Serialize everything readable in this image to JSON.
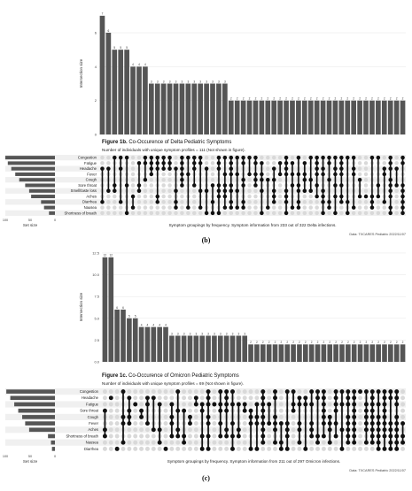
{
  "chart_data": [
    {
      "type": "bar",
      "panel": "delta",
      "ylabel": "Intersection size",
      "yticks": [
        0,
        2,
        4,
        6
      ],
      "ylim": [
        0,
        7.2
      ],
      "values": [
        7,
        6,
        5,
        5,
        5,
        4,
        4,
        4,
        3,
        3,
        3,
        3,
        3,
        3,
        3,
        3,
        3,
        3,
        3,
        3,
        3,
        2,
        2,
        2,
        2,
        2,
        2,
        2,
        2,
        2,
        2,
        2,
        2,
        2,
        2,
        2,
        2,
        2,
        2,
        2,
        2,
        2,
        2,
        2,
        2,
        2,
        2,
        2,
        2,
        2
      ],
      "figure_title_bold": "Figure 1b.",
      "figure_title": "Co-Occurence of Delta Pediatric Symptoms",
      "unique_note": "Number of individuals with unique symptom profiles = 111 (Not shown in figure).",
      "sets": [
        "Congestion",
        "Fatigue",
        "Headache",
        "Fever",
        "Cough",
        "Sore throat",
        "Smell/taste loss",
        "Aches",
        "Diarrhea",
        "Nausea",
        "Shortness of breath"
      ],
      "set_sizes": [
        100,
        95,
        88,
        80,
        72,
        60,
        52,
        48,
        28,
        22,
        12
      ],
      "set_size_ticks": [
        100,
        50,
        0
      ],
      "set_size_label": "Set size",
      "caption": "Symptom groupings by frequency. Symptom information from 233 out of 322 Delta infections.",
      "source": "Data: TXCARES Pediatric 2022/11/07",
      "panel_letter": "(b)"
    },
    {
      "type": "bar",
      "panel": "omicron",
      "ylabel": "Intersection size",
      "yticks": [
        0.0,
        2.5,
        5.0,
        7.5,
        10.0,
        12.5
      ],
      "ylim": [
        0,
        12.6
      ],
      "values": [
        12,
        12,
        6,
        6,
        5,
        5,
        4,
        4,
        4,
        4,
        4,
        3,
        3,
        3,
        3,
        3,
        3,
        3,
        3,
        3,
        3,
        3,
        3,
        3,
        2,
        2,
        2,
        2,
        2,
        2,
        2,
        2,
        2,
        2,
        2,
        2,
        2,
        2,
        2,
        2,
        2,
        2,
        2,
        2,
        2,
        2,
        2,
        2,
        2,
        2
      ],
      "figure_title_bold": "Figure 1c.",
      "figure_title": "Co-Occurence of Omicron Pediatric Symptoms",
      "unique_note": "Number of individuals with unique symptom profiles = 69 (Not shown in figure).",
      "sets": [
        "Congestion",
        "Headache",
        "Fatigue",
        "Sore throat",
        "Cough",
        "Fever",
        "Aches",
        "Shortness of breath",
        "Nausea",
        "Diarrhea"
      ],
      "set_sizes": [
        98,
        90,
        82,
        74,
        66,
        60,
        52,
        14,
        8,
        6
      ],
      "set_size_ticks": [
        100,
        50,
        0
      ],
      "set_size_label": "Set size",
      "caption": "Symptom groupings by frequency. Symptom information from 211 out of 297 Omicron infections.",
      "source": "Data: TXCARES Pediatric 2022/11/07",
      "panel_letter": "(c)"
    }
  ],
  "colors": {
    "bar": "#555555",
    "dot_on": "#111111",
    "dot_off": "#d9d9d9",
    "stripe": "#f0f0f0"
  }
}
